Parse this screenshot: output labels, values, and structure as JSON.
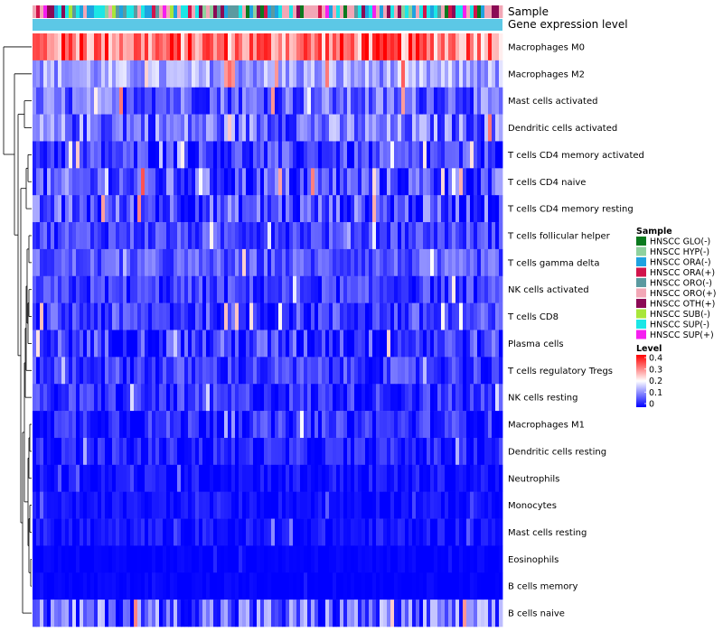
{
  "chart_data": {
    "type": "heatmap",
    "title": "",
    "annotation_labels": [
      "Sample",
      "Gene expression level"
    ],
    "rows": [
      {
        "label": "Macrophages M0",
        "mean": 0.3,
        "spread": 0.1
      },
      {
        "label": "Macrophages M2",
        "mean": 0.12,
        "spread": 0.06
      },
      {
        "label": "Mast cells activated",
        "mean": 0.07,
        "spread": 0.07
      },
      {
        "label": "Dendritic cells activated",
        "mean": 0.08,
        "spread": 0.08
      },
      {
        "label": "T cells CD4 memory activated",
        "mean": 0.04,
        "spread": 0.06
      },
      {
        "label": "T cells CD4 naive",
        "mean": 0.05,
        "spread": 0.08
      },
      {
        "label": "T cells CD4 memory resting",
        "mean": 0.05,
        "spread": 0.08
      },
      {
        "label": "T cells follicular helper",
        "mean": 0.05,
        "spread": 0.05
      },
      {
        "label": "T cells gamma delta",
        "mean": 0.06,
        "spread": 0.05
      },
      {
        "label": "NK cells activated",
        "mean": 0.04,
        "spread": 0.05
      },
      {
        "label": "T cells CD8",
        "mean": 0.04,
        "spread": 0.06
      },
      {
        "label": "Plasma cells",
        "mean": 0.04,
        "spread": 0.07
      },
      {
        "label": "T cells regulatory  Tregs",
        "mean": 0.04,
        "spread": 0.05
      },
      {
        "label": "NK cells resting",
        "mean": 0.03,
        "spread": 0.05
      },
      {
        "label": "Macrophages M1",
        "mean": 0.03,
        "spread": 0.05
      },
      {
        "label": "Dendritic cells resting",
        "mean": 0.02,
        "spread": 0.04
      },
      {
        "label": "Neutrophils",
        "mean": 0.01,
        "spread": 0.03
      },
      {
        "label": "Monocytes",
        "mean": 0.01,
        "spread": 0.02
      },
      {
        "label": "Mast cells resting",
        "mean": 0.01,
        "spread": 0.03
      },
      {
        "label": "Eosinophils",
        "mean": 0.0,
        "spread": 0.01
      },
      {
        "label": "B cells memory",
        "mean": 0.0,
        "spread": 0.01
      },
      {
        "label": "B cells naive",
        "mean": 0.06,
        "spread": 0.1
      }
    ],
    "n_samples": 130,
    "value_range": [
      0,
      0.4
    ],
    "sample_legend": {
      "title": "Sample",
      "entries": [
        {
          "name": "HNSCC GLO(-)",
          "color": "#0B7A1E"
        },
        {
          "name": "HNSCC HYP(-)",
          "color": "#8FD19E"
        },
        {
          "name": "HNSCC ORA(-)",
          "color": "#1FA2E0"
        },
        {
          "name": "HNSCC ORA(+)",
          "color": "#D2144B"
        },
        {
          "name": "HNSCC ORO(-)",
          "color": "#5B9AA0"
        },
        {
          "name": "HNSCC ORO(+)",
          "color": "#F2A7B6"
        },
        {
          "name": "HNSCC OTH(+)",
          "color": "#8B0A55"
        },
        {
          "name": "HNSCC SUB(-)",
          "color": "#A8E63A"
        },
        {
          "name": "HNSCC SUP(-)",
          "color": "#1CE6E6"
        },
        {
          "name": "HNSCC SUP(+)",
          "color": "#F51EF0"
        }
      ]
    },
    "level_legend": {
      "title": "Level",
      "ticks": [
        "0.4",
        "0.3",
        "0.2",
        "0.1",
        "0"
      ],
      "colors": [
        "#0000FF",
        "#FFFFFF",
        "#FF0000"
      ]
    },
    "gene_expression_color": "#5CC8E6"
  }
}
